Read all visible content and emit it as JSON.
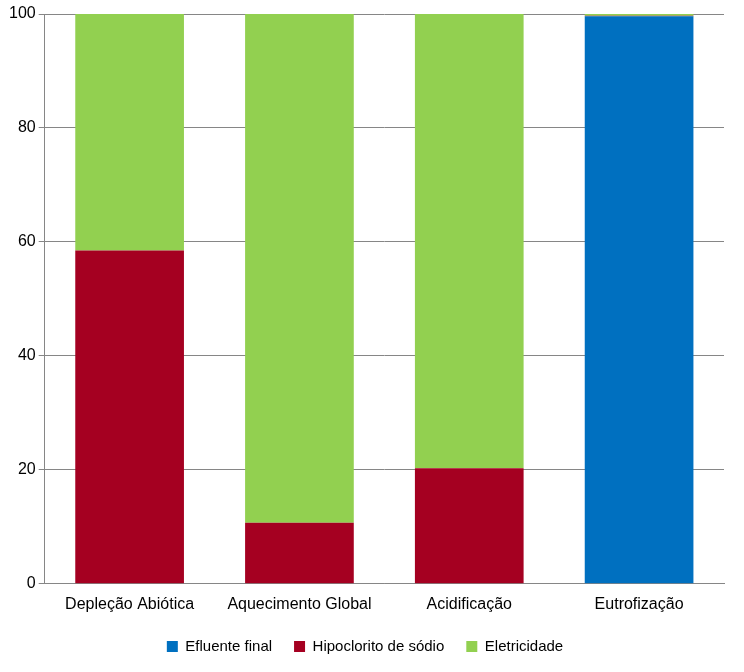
{
  "chart_data": {
    "type": "bar",
    "stacked": true,
    "categories": [
      "Depleção Abiótica",
      "Aquecimento Global",
      "Acidificação",
      "Eutrofização"
    ],
    "series": [
      {
        "name": "Efluente final",
        "color": "#0070c0",
        "values": [
          0,
          0,
          0,
          99.6
        ]
      },
      {
        "name": "Hipoclorito de sódio",
        "color": "#a50021",
        "values": [
          58.5,
          10.7,
          20.3,
          0.1
        ]
      },
      {
        "name": "Eletricidade",
        "color": "#92d050",
        "values": [
          41.5,
          89.3,
          79.7,
          0.3
        ]
      }
    ],
    "ylim": [
      0,
      100
    ],
    "yticks": [
      0,
      20,
      40,
      60,
      80,
      100
    ],
    "grid": true,
    "legend": "bottom"
  }
}
